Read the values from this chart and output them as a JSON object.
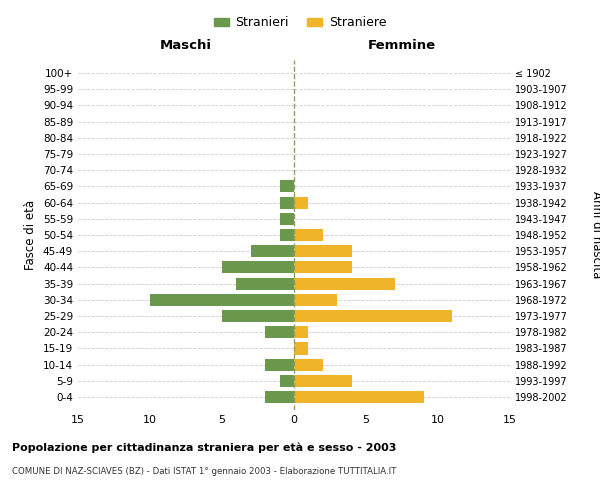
{
  "age_groups": [
    "0-4",
    "5-9",
    "10-14",
    "15-19",
    "20-24",
    "25-29",
    "30-34",
    "35-39",
    "40-44",
    "45-49",
    "50-54",
    "55-59",
    "60-64",
    "65-69",
    "70-74",
    "75-79",
    "80-84",
    "85-89",
    "90-94",
    "95-99",
    "100+"
  ],
  "birth_years": [
    "1998-2002",
    "1993-1997",
    "1988-1992",
    "1983-1987",
    "1978-1982",
    "1973-1977",
    "1968-1972",
    "1963-1967",
    "1958-1962",
    "1953-1957",
    "1948-1952",
    "1943-1947",
    "1938-1942",
    "1933-1937",
    "1928-1932",
    "1923-1927",
    "1918-1922",
    "1913-1917",
    "1908-1912",
    "1903-1907",
    "≤ 1902"
  ],
  "males": [
    2,
    1,
    2,
    0,
    2,
    5,
    10,
    4,
    5,
    3,
    1,
    1,
    1,
    1,
    0,
    0,
    0,
    0,
    0,
    0,
    0
  ],
  "females": [
    9,
    4,
    2,
    1,
    1,
    11,
    3,
    7,
    4,
    4,
    2,
    0,
    1,
    0,
    0,
    0,
    0,
    0,
    0,
    0,
    0
  ],
  "male_color": "#6a994e",
  "female_color": "#f0b429",
  "title": "Popolazione per cittadinanza straniera per età e sesso - 2003",
  "subtitle": "COMUNE DI NAZ-SCIAVES (BZ) - Dati ISTAT 1° gennaio 2003 - Elaborazione TUTTITALIA.IT",
  "xlabel_left": "Maschi",
  "xlabel_right": "Femmine",
  "ylabel_left": "Fasce di età",
  "ylabel_right": "Anni di nascita",
  "legend_male": "Stranieri",
  "legend_female": "Straniere",
  "xlim": 15,
  "background_color": "#ffffff",
  "grid_color": "#cccccc",
  "bar_height": 0.75
}
